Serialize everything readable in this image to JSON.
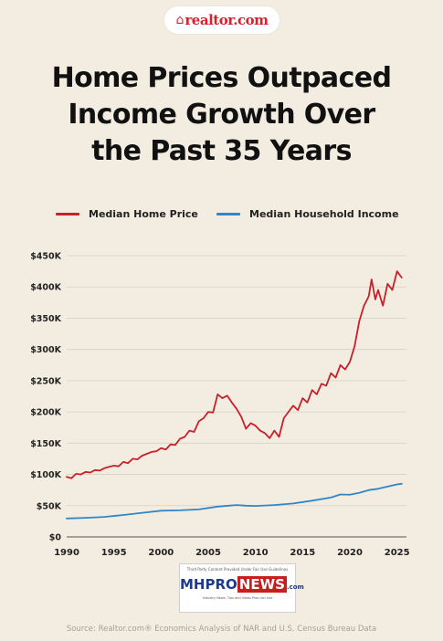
{
  "logo": {
    "icon": "house-icon",
    "text": "realtor.com"
  },
  "title_lines": [
    "Home Prices Outpaced",
    "Income Growth Over",
    "the Past 35 Years"
  ],
  "badge": {
    "top_text": "Third Party Content Provided Under Fair Use Guidelines",
    "mh": "MH",
    "pro": "PRO",
    "news": "NEWS",
    "com": ".com",
    "bottom_text": "Industry News, Tips and Views Pros can Use"
  },
  "source": "Source: Realtor.com® Economics Analysis of NAR and U.S. Census Bureau Data",
  "chart_data": {
    "type": "line",
    "title": "Home Prices Outpaced Income Growth Over the Past 35 Years",
    "xlabel": "",
    "ylabel": "",
    "xlim": [
      1990,
      2026
    ],
    "ylim": [
      0,
      450000
    ],
    "x_ticks": [
      1990,
      1995,
      2000,
      2005,
      2010,
      2015,
      2020,
      2025
    ],
    "x_tick_labels": [
      "1990",
      "1995",
      "2000",
      "2005",
      "2010",
      "2015",
      "2020",
      "2025"
    ],
    "y_ticks": [
      0,
      50000,
      100000,
      150000,
      200000,
      250000,
      300000,
      350000,
      400000,
      450000
    ],
    "y_tick_labels": [
      "$0",
      "$50K",
      "$100K",
      "$150K",
      "$200K",
      "$250K",
      "$300K",
      "$350K",
      "$400K",
      "$450K"
    ],
    "grid": "horizontal",
    "legend_position": "top",
    "series": [
      {
        "name": "Median Home Price",
        "color": "#c8202a",
        "x": [
          1990,
          1990.5,
          1991,
          1991.5,
          1992,
          1992.5,
          1993,
          1993.5,
          1994,
          1994.5,
          1995,
          1995.5,
          1996,
          1996.5,
          1997,
          1997.5,
          1998,
          1998.5,
          1999,
          1999.5,
          2000,
          2000.5,
          2001,
          2001.5,
          2002,
          2002.5,
          2003,
          2003.5,
          2004,
          2004.5,
          2005,
          2005.5,
          2006,
          2006.5,
          2007,
          2007.5,
          2008,
          2008.5,
          2009,
          2009.5,
          2010,
          2010.5,
          2011,
          2011.5,
          2012,
          2012.5,
          2013,
          2013.5,
          2014,
          2014.5,
          2015,
          2015.5,
          2016,
          2016.5,
          2017,
          2017.5,
          2018,
          2018.5,
          2019,
          2019.5,
          2020,
          2020.5,
          2021,
          2021.5,
          2022,
          2022.3,
          2022.7,
          2023,
          2023.5,
          2024,
          2024.5,
          2025,
          2025.5
        ],
        "values": [
          96000,
          94000,
          101000,
          100000,
          104000,
          103000,
          107000,
          106000,
          110000,
          112000,
          114000,
          113000,
          120000,
          118000,
          125000,
          124000,
          130000,
          133000,
          136000,
          137000,
          142000,
          140000,
          148000,
          147000,
          157000,
          160000,
          170000,
          168000,
          185000,
          190000,
          200000,
          199000,
          228000,
          222000,
          226000,
          215000,
          205000,
          192000,
          173000,
          182000,
          178000,
          170000,
          166000,
          158000,
          170000,
          160000,
          190000,
          200000,
          210000,
          203000,
          222000,
          215000,
          235000,
          228000,
          245000,
          242000,
          262000,
          255000,
          275000,
          268000,
          280000,
          305000,
          345000,
          370000,
          385000,
          412000,
          380000,
          395000,
          370000,
          405000,
          395000,
          425000,
          415000
        ]
      },
      {
        "name": "Median Household Income",
        "color": "#2f86c8",
        "x": [
          1990,
          1992,
          1994,
          1996,
          1998,
          2000,
          2002,
          2004,
          2006,
          2008,
          2009,
          2010,
          2012,
          2014,
          2016,
          2018,
          2019,
          2020,
          2021,
          2022,
          2023,
          2024,
          2025,
          2025.5
        ],
        "values": [
          29500,
          30500,
          32000,
          35000,
          38500,
          42000,
          42500,
          44000,
          48500,
          51000,
          50000,
          49500,
          51000,
          53500,
          58000,
          63000,
          68000,
          67500,
          70500,
          75000,
          77000,
          80500,
          84000,
          85000
        ]
      }
    ]
  }
}
